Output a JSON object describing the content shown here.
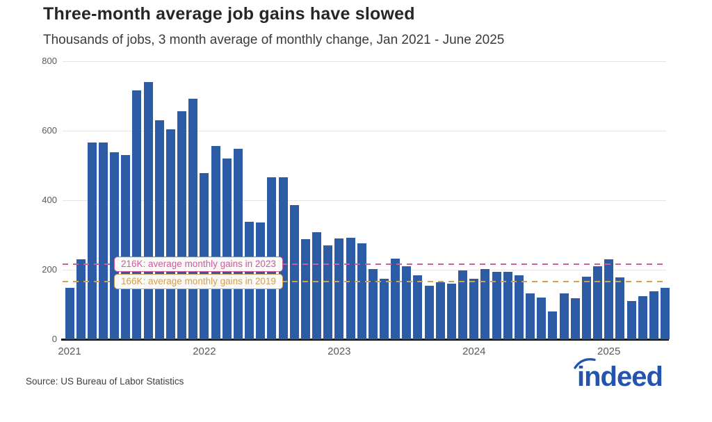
{
  "header": {
    "title": "Three-month average job gains have slowed",
    "subtitle": "Thousands of jobs, 3 month average of monthly change, Jan 2021 - June 2025"
  },
  "footer": {
    "source": "Source: US Bureau of Labor Statistics",
    "logo_text": "indeed"
  },
  "colors": {
    "bar": "#2d5ca5",
    "gridline": "#e5e5e8",
    "axis_line": "#17191e",
    "ref_2023": "#cf5c9c",
    "ref_2019": "#d5a04e",
    "logo_blue": "#2454ad"
  },
  "chart_data": {
    "type": "bar",
    "title": "Three-month average job gains have slowed",
    "subtitle": "Thousands of jobs, 3 month average of monthly change, Jan 2021 - June 2025",
    "xlabel": "",
    "ylabel": "Thousands of jobs",
    "ylim": [
      0,
      800
    ],
    "y_ticks": [
      0,
      200,
      400,
      600,
      800
    ],
    "grid": true,
    "legend": false,
    "x": [
      "Jan 2021",
      "Feb 2021",
      "Mar 2021",
      "Apr 2021",
      "May 2021",
      "Jun 2021",
      "Jul 2021",
      "Aug 2021",
      "Sep 2021",
      "Oct 2021",
      "Nov 2021",
      "Dec 2021",
      "Jan 2022",
      "Feb 2022",
      "Mar 2022",
      "Apr 2022",
      "May 2022",
      "Jun 2022",
      "Jul 2022",
      "Aug 2022",
      "Sep 2022",
      "Oct 2022",
      "Nov 2022",
      "Dec 2022",
      "Jan 2023",
      "Feb 2023",
      "Mar 2023",
      "Apr 2023",
      "May 2023",
      "Jun 2023",
      "Jul 2023",
      "Aug 2023",
      "Sep 2023",
      "Oct 2023",
      "Nov 2023",
      "Dec 2023",
      "Jan 2024",
      "Feb 2024",
      "Mar 2024",
      "Apr 2024",
      "May 2024",
      "Jun 2024",
      "Jul 2024",
      "Aug 2024",
      "Sep 2024",
      "Oct 2024",
      "Nov 2024",
      "Dec 2024",
      "Jan 2025",
      "Feb 2025",
      "Mar 2025",
      "Apr 2025",
      "May 2025",
      "Jun 2025"
    ],
    "values": [
      149,
      230,
      567,
      567,
      539,
      530,
      717,
      740,
      631,
      605,
      656,
      692,
      479,
      557,
      521,
      549,
      338,
      336,
      466,
      466,
      387,
      288,
      308,
      271,
      291,
      293,
      277,
      202,
      175,
      233,
      211,
      185,
      154,
      165,
      161,
      199,
      174,
      202,
      195,
      195,
      185,
      132,
      121,
      81,
      133,
      118,
      181,
      210,
      231,
      179,
      111,
      125,
      139,
      149
    ],
    "x_tick_labels": [
      "2021",
      "2022",
      "2023",
      "2024",
      "2025"
    ],
    "reference_lines": [
      {
        "value": 216,
        "label": "216K: average monthly gains in 2023",
        "color": "#cf5c9c"
      },
      {
        "value": 166,
        "label": "166K: average monthly gains in 2019",
        "color": "#d5a04e"
      }
    ]
  }
}
